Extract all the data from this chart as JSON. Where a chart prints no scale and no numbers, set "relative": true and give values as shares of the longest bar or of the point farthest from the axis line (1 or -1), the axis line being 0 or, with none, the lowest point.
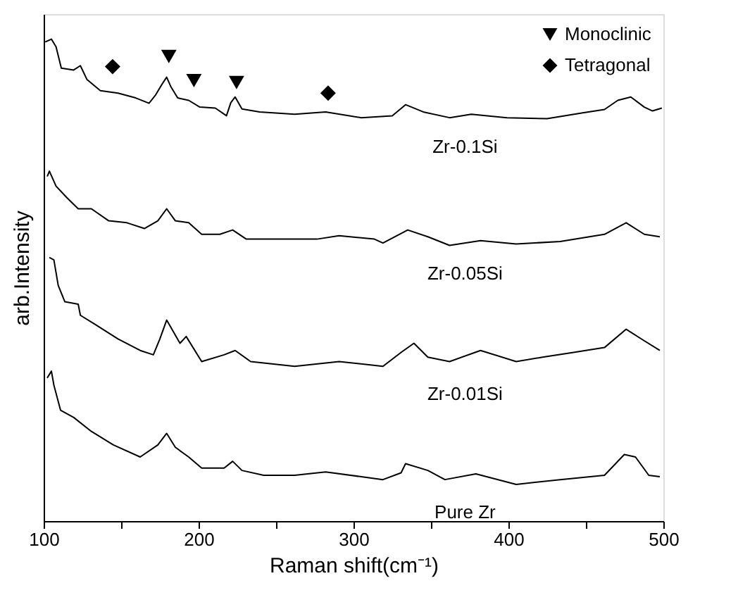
{
  "chart_data": {
    "type": "line",
    "relative": true,
    "xlabel": "Raman shift(cm⁻¹)",
    "ylabel": "arb.Intensity",
    "xlim": [
      100,
      500
    ],
    "xticks": [
      100,
      {
        "value": 150,
        "label": null
      },
      200,
      {
        "value": 250,
        "label": null
      },
      300,
      {
        "value": 350,
        "label": null
      },
      400,
      {
        "value": 450,
        "label": null
      },
      500
    ],
    "tick_labels": "x",
    "grid": false,
    "legend": "top right",
    "line_style": "solid",
    "marker": "none",
    "series": [
      {
        "name": "Zr-0.1Si",
        "color": "#000000",
        "x": [
          101,
          105,
          108,
          111.4,
          119.4,
          123.7,
          128,
          136.6,
          148,
          159.4,
          168,
          172,
          176.5,
          179.4,
          182,
          186.5,
          193.6,
          200.8,
          210.8,
          218,
          220.8,
          223.6,
          228,
          239.4,
          262,
          282,
          305,
          325,
          333.6,
          345,
          362,
          376,
          399,
          425,
          448,
          462,
          470.6,
          479,
          487.7,
          493,
          499
        ],
        "values": [
          0.994,
          1.0,
          0.984,
          0.94,
          0.936,
          0.945,
          0.916,
          0.893,
          0.888,
          0.878,
          0.867,
          0.883,
          0.907,
          0.921,
          0.902,
          0.878,
          0.873,
          0.859,
          0.857,
          0.841,
          0.868,
          0.88,
          0.855,
          0.849,
          0.844,
          0.849,
          0.837,
          0.841,
          0.864,
          0.849,
          0.837,
          0.844,
          0.837,
          0.835,
          0.847,
          0.854,
          0.873,
          0.88,
          0.859,
          0.851,
          0.857
        ]
      },
      {
        "name": "Zr-0.05Si",
        "color": "#000000",
        "x": [
          102.3,
          103.7,
          108,
          115,
          122.3,
          130.8,
          142,
          153.7,
          165,
          173.7,
          179.4,
          185,
          193.6,
          202,
          213.7,
          222,
          230.8,
          248,
          276.4,
          290.7,
          313.5,
          319,
          335,
          348,
          362,
          382,
          405,
          433.4,
          462,
          476,
          487.7,
          497.7
        ],
        "values": [
          0.715,
          0.726,
          0.695,
          0.671,
          0.648,
          0.648,
          0.623,
          0.619,
          0.607,
          0.623,
          0.648,
          0.623,
          0.619,
          0.595,
          0.595,
          0.604,
          0.585,
          0.585,
          0.585,
          0.592,
          0.585,
          0.577,
          0.604,
          0.59,
          0.572,
          0.582,
          0.575,
          0.58,
          0.595,
          0.619,
          0.595,
          0.59
        ]
      },
      {
        "name": "Zr-0.01Si",
        "color": "#000000",
        "x": [
          103.7,
          106.6,
          109.4,
          113.7,
          122.3,
          123.7,
          133.7,
          148,
          162.3,
          170.8,
          175,
          179.4,
          188,
          192,
          202,
          216.5,
          223.6,
          233.6,
          262,
          290.7,
          319,
          330.7,
          339,
          348,
          362,
          382,
          405,
          422,
          442,
          462,
          476,
          487.7,
          497.7
        ],
        "values": [
          0.547,
          0.542,
          0.489,
          0.455,
          0.45,
          0.427,
          0.407,
          0.378,
          0.354,
          0.345,
          0.378,
          0.417,
          0.369,
          0.383,
          0.331,
          0.345,
          0.354,
          0.331,
          0.321,
          0.331,
          0.321,
          0.35,
          0.369,
          0.34,
          0.331,
          0.354,
          0.331,
          0.34,
          0.35,
          0.36,
          0.398,
          0.374,
          0.354
        ]
      },
      {
        "name": "Pure Zr",
        "color": "#000000",
        "x": [
          102.3,
          105,
          106.6,
          110.9,
          119.4,
          130.8,
          145,
          162.3,
          173.7,
          179.4,
          185,
          193.6,
          202,
          216.5,
          222,
          228,
          242,
          262,
          282,
          305,
          319,
          330.7,
          333.6,
          348,
          359,
          379,
          405,
          433.4,
          462,
          474.8,
          482,
          490.6,
          497.7
        ],
        "values": [
          0.297,
          0.311,
          0.282,
          0.23,
          0.215,
          0.186,
          0.158,
          0.133,
          0.158,
          0.182,
          0.153,
          0.133,
          0.11,
          0.11,
          0.124,
          0.105,
          0.095,
          0.095,
          0.102,
          0.092,
          0.086,
          0.1,
          0.119,
          0.105,
          0.086,
          0.098,
          0.076,
          0.086,
          0.095,
          0.138,
          0.133,
          0.095,
          0.092
        ]
      },
      {
        "name": "Monoclinic",
        "type": "scatter",
        "marker": "triangle",
        "color": "#000000",
        "x": [
          180.8,
          197,
          224.5
        ],
        "values": [
          0.964,
          0.914,
          0.91
        ]
      },
      {
        "name": "Tetragonal",
        "type": "scatter",
        "marker": "diamond",
        "color": "#000000",
        "x": [
          144.5,
          283.6
        ],
        "values": [
          0.943,
          0.888
        ]
      }
    ]
  }
}
